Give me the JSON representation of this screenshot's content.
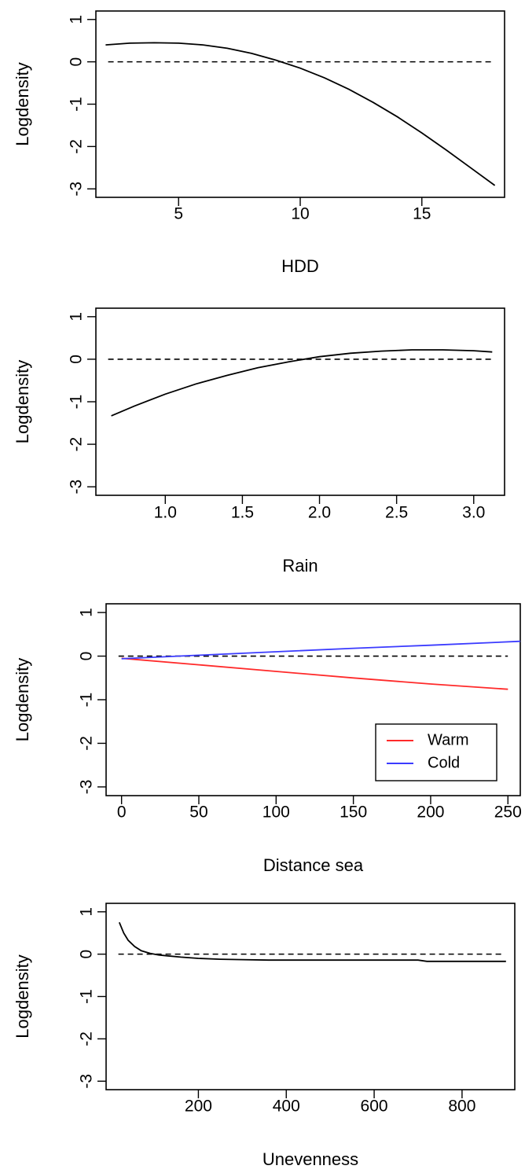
{
  "chart_data": [
    {
      "type": "line",
      "xlabel": "HDD",
      "ylabel": "Logdensity",
      "xlim": [
        1.6,
        18.4
      ],
      "ylim": [
        -3.2,
        1.2
      ],
      "xticks": [
        5,
        10,
        15
      ],
      "yticks": [
        1,
        0,
        -1,
        -2,
        -3
      ],
      "reference_line": 0,
      "series": [
        {
          "color": "#000000",
          "x": [
            2,
            3,
            4,
            5,
            6,
            7,
            8,
            9,
            10,
            11,
            12,
            13,
            14,
            15,
            16,
            17,
            18
          ],
          "y": [
            0.4,
            0.44,
            0.45,
            0.44,
            0.4,
            0.32,
            0.2,
            0.04,
            -0.15,
            -0.38,
            -0.65,
            -0.96,
            -1.3,
            -1.68,
            -2.08,
            -2.5,
            -2.92
          ]
        }
      ]
    },
    {
      "type": "line",
      "xlabel": "Rain",
      "ylabel": "Logdensity",
      "xlim": [
        0.55,
        3.2
      ],
      "ylim": [
        -3.2,
        1.2
      ],
      "xticks": [
        "1.0",
        "1.5",
        "2.0",
        "2.5",
        "3.0"
      ],
      "yticks": [
        1,
        0,
        -1,
        -2,
        -3
      ],
      "reference_line": 0,
      "series": [
        {
          "color": "#000000",
          "x": [
            0.65,
            0.8,
            1.0,
            1.2,
            1.4,
            1.6,
            1.8,
            2.0,
            2.2,
            2.4,
            2.6,
            2.8,
            3.0,
            3.12
          ],
          "y": [
            -1.33,
            -1.1,
            -0.82,
            -0.58,
            -0.38,
            -0.2,
            -0.06,
            0.06,
            0.14,
            0.19,
            0.22,
            0.22,
            0.2,
            0.17
          ]
        }
      ]
    },
    {
      "type": "line",
      "xlabel": "Distance sea",
      "ylabel": "Logdensity",
      "xlim": [
        -10,
        258
      ],
      "ylim": [
        -3.2,
        1.2
      ],
      "xticks": [
        0,
        50,
        100,
        150,
        200,
        250
      ],
      "yticks": [
        1,
        0,
        -1,
        -2,
        -3
      ],
      "reference_line": 0,
      "legend_position": "bottom-right",
      "series": [
        {
          "name": "Warm",
          "color": "#ff2a2a",
          "x": [
            0,
            50,
            100,
            150,
            200,
            250
          ],
          "y": [
            -0.05,
            -0.2,
            -0.35,
            -0.5,
            -0.64,
            -0.76
          ]
        },
        {
          "name": "Cold",
          "color": "#3b3bff",
          "x": [
            0,
            50,
            100,
            150,
            200,
            258
          ],
          "y": [
            -0.06,
            0.02,
            0.1,
            0.18,
            0.25,
            0.34
          ]
        }
      ]
    },
    {
      "type": "line",
      "xlabel": "Unevenness",
      "ylabel": "Logdensity",
      "xlim": [
        -10,
        920
      ],
      "ylim": [
        -3.2,
        1.2
      ],
      "xticks": [
        200,
        400,
        600,
        800
      ],
      "yticks": [
        1,
        0,
        -1,
        -2,
        -3
      ],
      "reference_line": 0,
      "series": [
        {
          "color": "#000000",
          "x": [
            20,
            30,
            40,
            55,
            70,
            90,
            110,
            130,
            160,
            200,
            250,
            300,
            360,
            450,
            550,
            650,
            700,
            720,
            800,
            900
          ],
          "y": [
            0.75,
            0.5,
            0.33,
            0.18,
            0.08,
            0.02,
            -0.02,
            -0.04,
            -0.07,
            -0.1,
            -0.12,
            -0.13,
            -0.14,
            -0.14,
            -0.14,
            -0.14,
            -0.14,
            -0.17,
            -0.17,
            -0.17
          ]
        }
      ]
    }
  ]
}
